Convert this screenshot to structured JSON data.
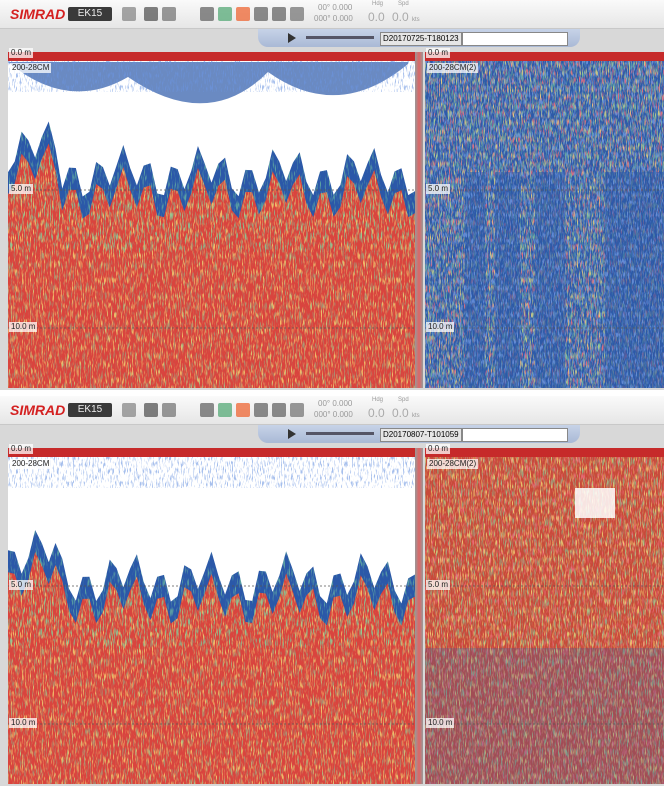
{
  "panels": [
    {
      "toolbar": {
        "brand": "SIMRAD",
        "model": "EK15",
        "lat": "00° 0.000",
        "lon": "000° 0.000",
        "hdg_label": "Hdg",
        "hdg": "0.0",
        "spd_label": "Spd",
        "spd": "0.0",
        "spd_unit": "kts"
      },
      "file": "D20170725-T180123",
      "left": {
        "channel": "200-28CM",
        "depths": [
          "0.0 m",
          "5.0 m",
          "10.0 m"
        ]
      },
      "right": {
        "channel": "200-28CM(2)",
        "depths": [
          "0.0 m",
          "5.0 m",
          "10.0 m"
        ]
      }
    },
    {
      "toolbar": {
        "brand": "SIMRAD",
        "model": "EK15",
        "lat": "00° 0.000",
        "lon": "000° 0.000",
        "hdg_label": "Hdg",
        "hdg": "0.0",
        "spd_label": "Spd",
        "spd": "0.0",
        "spd_unit": "kts"
      },
      "file": "D20170807-T101059",
      "left": {
        "channel": "200-28CM",
        "depths": [
          "0.0 m",
          "5.0 m",
          "10.0 m"
        ]
      },
      "right": {
        "channel": "200-28CM(2)",
        "depths": [
          "0.0 m",
          "5.0 m",
          "10.0 m"
        ]
      }
    }
  ]
}
